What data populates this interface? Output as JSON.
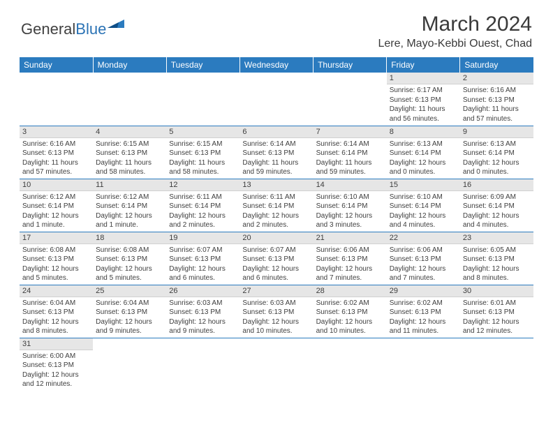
{
  "brand": {
    "part1": "General",
    "part2": "Blue"
  },
  "title": "March 2024",
  "location": "Lere, Mayo-Kebbi Ouest, Chad",
  "colors": {
    "header_bg": "#2b7bbf",
    "header_text": "#ffffff",
    "daynum_bg": "#e6e6e6",
    "text": "#3e3e3e",
    "rule": "#2b7bbf"
  },
  "weekdays": [
    "Sunday",
    "Monday",
    "Tuesday",
    "Wednesday",
    "Thursday",
    "Friday",
    "Saturday"
  ],
  "weeks": [
    [
      null,
      null,
      null,
      null,
      null,
      {
        "n": "1",
        "sr": "Sunrise: 6:17 AM",
        "ss": "Sunset: 6:13 PM",
        "dl": "Daylight: 11 hours and 56 minutes."
      },
      {
        "n": "2",
        "sr": "Sunrise: 6:16 AM",
        "ss": "Sunset: 6:13 PM",
        "dl": "Daylight: 11 hours and 57 minutes."
      }
    ],
    [
      {
        "n": "3",
        "sr": "Sunrise: 6:16 AM",
        "ss": "Sunset: 6:13 PM",
        "dl": "Daylight: 11 hours and 57 minutes."
      },
      {
        "n": "4",
        "sr": "Sunrise: 6:15 AM",
        "ss": "Sunset: 6:13 PM",
        "dl": "Daylight: 11 hours and 58 minutes."
      },
      {
        "n": "5",
        "sr": "Sunrise: 6:15 AM",
        "ss": "Sunset: 6:13 PM",
        "dl": "Daylight: 11 hours and 58 minutes."
      },
      {
        "n": "6",
        "sr": "Sunrise: 6:14 AM",
        "ss": "Sunset: 6:13 PM",
        "dl": "Daylight: 11 hours and 59 minutes."
      },
      {
        "n": "7",
        "sr": "Sunrise: 6:14 AM",
        "ss": "Sunset: 6:14 PM",
        "dl": "Daylight: 11 hours and 59 minutes."
      },
      {
        "n": "8",
        "sr": "Sunrise: 6:13 AM",
        "ss": "Sunset: 6:14 PM",
        "dl": "Daylight: 12 hours and 0 minutes."
      },
      {
        "n": "9",
        "sr": "Sunrise: 6:13 AM",
        "ss": "Sunset: 6:14 PM",
        "dl": "Daylight: 12 hours and 0 minutes."
      }
    ],
    [
      {
        "n": "10",
        "sr": "Sunrise: 6:12 AM",
        "ss": "Sunset: 6:14 PM",
        "dl": "Daylight: 12 hours and 1 minute."
      },
      {
        "n": "11",
        "sr": "Sunrise: 6:12 AM",
        "ss": "Sunset: 6:14 PM",
        "dl": "Daylight: 12 hours and 1 minute."
      },
      {
        "n": "12",
        "sr": "Sunrise: 6:11 AM",
        "ss": "Sunset: 6:14 PM",
        "dl": "Daylight: 12 hours and 2 minutes."
      },
      {
        "n": "13",
        "sr": "Sunrise: 6:11 AM",
        "ss": "Sunset: 6:14 PM",
        "dl": "Daylight: 12 hours and 2 minutes."
      },
      {
        "n": "14",
        "sr": "Sunrise: 6:10 AM",
        "ss": "Sunset: 6:14 PM",
        "dl": "Daylight: 12 hours and 3 minutes."
      },
      {
        "n": "15",
        "sr": "Sunrise: 6:10 AM",
        "ss": "Sunset: 6:14 PM",
        "dl": "Daylight: 12 hours and 4 minutes."
      },
      {
        "n": "16",
        "sr": "Sunrise: 6:09 AM",
        "ss": "Sunset: 6:14 PM",
        "dl": "Daylight: 12 hours and 4 minutes."
      }
    ],
    [
      {
        "n": "17",
        "sr": "Sunrise: 6:08 AM",
        "ss": "Sunset: 6:13 PM",
        "dl": "Daylight: 12 hours and 5 minutes."
      },
      {
        "n": "18",
        "sr": "Sunrise: 6:08 AM",
        "ss": "Sunset: 6:13 PM",
        "dl": "Daylight: 12 hours and 5 minutes."
      },
      {
        "n": "19",
        "sr": "Sunrise: 6:07 AM",
        "ss": "Sunset: 6:13 PM",
        "dl": "Daylight: 12 hours and 6 minutes."
      },
      {
        "n": "20",
        "sr": "Sunrise: 6:07 AM",
        "ss": "Sunset: 6:13 PM",
        "dl": "Daylight: 12 hours and 6 minutes."
      },
      {
        "n": "21",
        "sr": "Sunrise: 6:06 AM",
        "ss": "Sunset: 6:13 PM",
        "dl": "Daylight: 12 hours and 7 minutes."
      },
      {
        "n": "22",
        "sr": "Sunrise: 6:06 AM",
        "ss": "Sunset: 6:13 PM",
        "dl": "Daylight: 12 hours and 7 minutes."
      },
      {
        "n": "23",
        "sr": "Sunrise: 6:05 AM",
        "ss": "Sunset: 6:13 PM",
        "dl": "Daylight: 12 hours and 8 minutes."
      }
    ],
    [
      {
        "n": "24",
        "sr": "Sunrise: 6:04 AM",
        "ss": "Sunset: 6:13 PM",
        "dl": "Daylight: 12 hours and 8 minutes."
      },
      {
        "n": "25",
        "sr": "Sunrise: 6:04 AM",
        "ss": "Sunset: 6:13 PM",
        "dl": "Daylight: 12 hours and 9 minutes."
      },
      {
        "n": "26",
        "sr": "Sunrise: 6:03 AM",
        "ss": "Sunset: 6:13 PM",
        "dl": "Daylight: 12 hours and 9 minutes."
      },
      {
        "n": "27",
        "sr": "Sunrise: 6:03 AM",
        "ss": "Sunset: 6:13 PM",
        "dl": "Daylight: 12 hours and 10 minutes."
      },
      {
        "n": "28",
        "sr": "Sunrise: 6:02 AM",
        "ss": "Sunset: 6:13 PM",
        "dl": "Daylight: 12 hours and 10 minutes."
      },
      {
        "n": "29",
        "sr": "Sunrise: 6:02 AM",
        "ss": "Sunset: 6:13 PM",
        "dl": "Daylight: 12 hours and 11 minutes."
      },
      {
        "n": "30",
        "sr": "Sunrise: 6:01 AM",
        "ss": "Sunset: 6:13 PM",
        "dl": "Daylight: 12 hours and 12 minutes."
      }
    ],
    [
      {
        "n": "31",
        "sr": "Sunrise: 6:00 AM",
        "ss": "Sunset: 6:13 PM",
        "dl": "Daylight: 12 hours and 12 minutes."
      },
      null,
      null,
      null,
      null,
      null,
      null
    ]
  ]
}
